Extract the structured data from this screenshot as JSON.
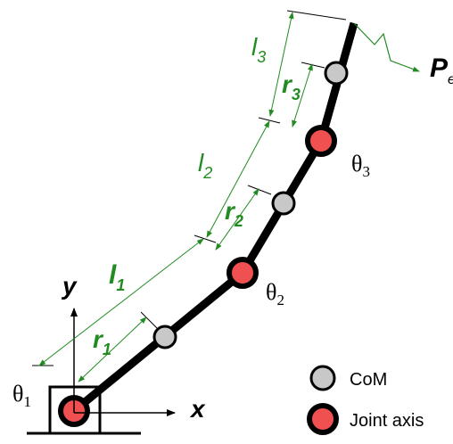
{
  "labels": {
    "l3": "l",
    "l3_sub": "3",
    "r3": "r",
    "r3_sub": "3",
    "l2": "l",
    "l2_sub": "2",
    "r2": "r",
    "r2_sub": "2",
    "l1": "l",
    "l1_sub": "1",
    "r1": "r",
    "r1_sub": "1",
    "theta3": "θ",
    "theta3_sub": "3",
    "theta2": "θ",
    "theta2_sub": "2",
    "theta1": "θ",
    "theta1_sub": "1",
    "pe": "P",
    "pe_sub": "e",
    "x_axis": "x",
    "y_axis": "y"
  },
  "legend": {
    "com": "CoM",
    "joint": "Joint axis"
  },
  "colors": {
    "link": "#000000",
    "joint_fill": "#f05050",
    "com_fill": "#c8c8c8",
    "dimension": "#228b22",
    "axis": "#000000"
  }
}
